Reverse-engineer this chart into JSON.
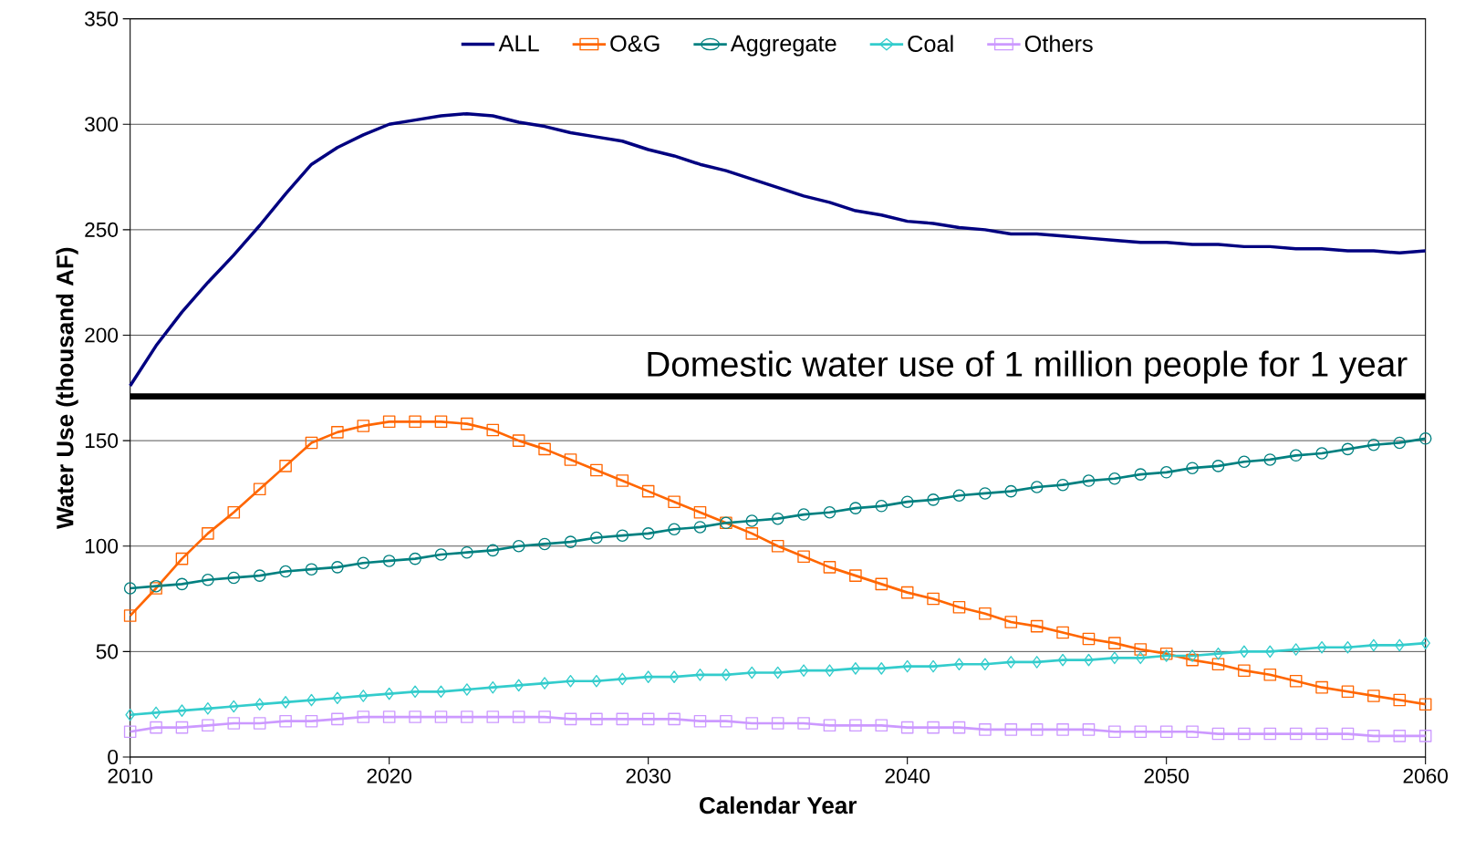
{
  "chart_data": {
    "type": "line",
    "xlabel": "Calendar Year",
    "ylabel": "Water Use (thousand AF)",
    "x": [
      2010,
      2011,
      2012,
      2013,
      2014,
      2015,
      2016,
      2017,
      2018,
      2019,
      2020,
      2021,
      2022,
      2023,
      2024,
      2025,
      2026,
      2027,
      2028,
      2029,
      2030,
      2031,
      2032,
      2033,
      2034,
      2035,
      2036,
      2037,
      2038,
      2039,
      2040,
      2041,
      2042,
      2043,
      2044,
      2045,
      2046,
      2047,
      2048,
      2049,
      2050,
      2051,
      2052,
      2053,
      2054,
      2055,
      2056,
      2057,
      2058,
      2059,
      2060
    ],
    "series": [
      {
        "name": "ALL",
        "color": "#000080",
        "marker": "none",
        "values": [
          176,
          195,
          211,
          225,
          238,
          252,
          267,
          281,
          289,
          295,
          300,
          302,
          304,
          305,
          304,
          301,
          299,
          296,
          294,
          292,
          288,
          285,
          281,
          278,
          274,
          270,
          266,
          263,
          259,
          257,
          254,
          253,
          251,
          250,
          248,
          248,
          247,
          246,
          245,
          244,
          244,
          243,
          243,
          242,
          242,
          241,
          241,
          240,
          240,
          239,
          240
        ]
      },
      {
        "name": "O&G",
        "color": "#ff6600",
        "marker": "square",
        "values": [
          67,
          80,
          94,
          106,
          116,
          127,
          138,
          149,
          154,
          157,
          159,
          159,
          159,
          158,
          155,
          150,
          146,
          141,
          136,
          131,
          126,
          121,
          116,
          111,
          106,
          100,
          95,
          90,
          86,
          82,
          78,
          75,
          71,
          68,
          64,
          62,
          59,
          56,
          54,
          51,
          49,
          46,
          44,
          41,
          39,
          36,
          33,
          31,
          29,
          27,
          25
        ]
      },
      {
        "name": "Aggregate",
        "color": "#008080",
        "marker": "circle",
        "values": [
          80,
          81,
          82,
          84,
          85,
          86,
          88,
          89,
          90,
          92,
          93,
          94,
          96,
          97,
          98,
          100,
          101,
          102,
          104,
          105,
          106,
          108,
          109,
          111,
          112,
          113,
          115,
          116,
          118,
          119,
          121,
          122,
          124,
          125,
          126,
          128,
          129,
          131,
          132,
          134,
          135,
          137,
          138,
          140,
          141,
          143,
          144,
          146,
          148,
          149,
          151
        ]
      },
      {
        "name": "Coal",
        "color": "#33cccc",
        "marker": "diamond",
        "values": [
          20,
          21,
          22,
          23,
          24,
          25,
          26,
          27,
          28,
          29,
          30,
          31,
          31,
          32,
          33,
          34,
          35,
          36,
          36,
          37,
          38,
          38,
          39,
          39,
          40,
          40,
          41,
          41,
          42,
          42,
          43,
          43,
          44,
          44,
          45,
          45,
          46,
          46,
          47,
          47,
          48,
          48,
          49,
          50,
          50,
          51,
          52,
          52,
          53,
          53,
          54
        ]
      },
      {
        "name": "Others",
        "color": "#cc99ff",
        "marker": "square",
        "values": [
          12,
          14,
          14,
          15,
          16,
          16,
          17,
          17,
          18,
          19,
          19,
          19,
          19,
          19,
          19,
          19,
          19,
          18,
          18,
          18,
          18,
          18,
          17,
          17,
          16,
          16,
          16,
          15,
          15,
          15,
          14,
          14,
          14,
          13,
          13,
          13,
          13,
          13,
          12,
          12,
          12,
          12,
          11,
          11,
          11,
          11,
          11,
          11,
          10,
          10,
          10
        ]
      }
    ],
    "ref_lines": [
      {
        "axis": "y",
        "value": 171,
        "label": "Domestic water use of 1 million people for 1 year",
        "color": "#000000"
      }
    ],
    "xlim": [
      2010,
      2060
    ],
    "xticks": [
      2010,
      2020,
      2030,
      2040,
      2050,
      2060
    ],
    "ylim": [
      0,
      350
    ],
    "yticks": [
      0,
      50,
      100,
      150,
      200,
      250,
      300,
      350
    ],
    "grid": "y",
    "legend": "top",
    "line_style": "solid"
  }
}
